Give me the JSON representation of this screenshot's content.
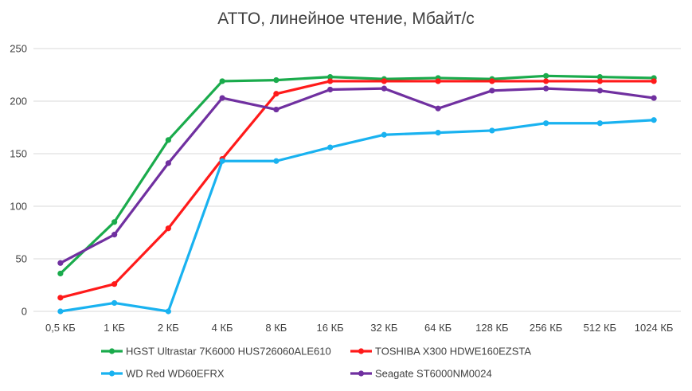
{
  "chart_data": {
    "type": "line",
    "title": "ATTO, линейное чтение, Мбайт/с",
    "categories": [
      "0,5 КБ",
      "1 КБ",
      "2 КБ",
      "4 КБ",
      "8 КБ",
      "16 КБ",
      "32 КБ",
      "64 КБ",
      "128 КБ",
      "256 КБ",
      "512 КБ",
      "1024 КБ"
    ],
    "ylim": [
      0,
      250
    ],
    "yticks": [
      0,
      50,
      100,
      150,
      200,
      250
    ],
    "grid": true,
    "legend_position": "bottom",
    "series": [
      {
        "name": "HGST Ultrastar 7K6000 HUS726060ALE610",
        "color": "#1aab4c",
        "values": [
          36,
          85,
          163,
          219,
          220,
          223,
          221,
          222,
          221,
          224,
          223,
          222
        ]
      },
      {
        "name": "TOSHIBA X300 HDWE160EZSTA",
        "color": "#ff1a1a",
        "values": [
          13,
          26,
          79,
          145,
          207,
          219,
          219,
          219,
          219,
          219,
          219,
          219
        ]
      },
      {
        "name": "WD Red WD60EFRX",
        "color": "#19b2f0",
        "values": [
          0,
          8,
          0,
          143,
          143,
          156,
          168,
          170,
          172,
          179,
          179,
          182
        ]
      },
      {
        "name": "Seagate ST6000NM0024",
        "color": "#7030a0",
        "values": [
          46,
          73,
          141,
          203,
          192,
          211,
          212,
          193,
          210,
          212,
          210,
          203
        ]
      }
    ]
  }
}
